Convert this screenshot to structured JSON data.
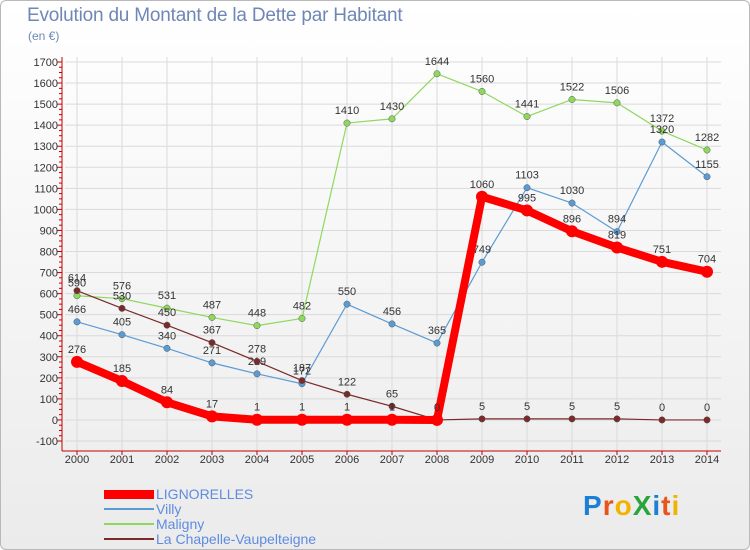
{
  "title": "Evolution du Montant de la Dette par Habitant",
  "subtitle": "(en €)",
  "logo": {
    "text": "ProXiti",
    "colors": [
      "#1b7fd6",
      "#e8541b",
      "#f0b400",
      "#2aa43c",
      "#1b7fd6",
      "#e8541b",
      "#f0b400"
    ]
  },
  "chart_data": {
    "type": "line",
    "title": "Evolution du Montant de la Dette par Habitant",
    "ylabel": "(en €)",
    "xlabel": "",
    "ylim": [
      -100,
      1700
    ],
    "yticks": [
      -100,
      0,
      100,
      200,
      300,
      400,
      500,
      600,
      700,
      800,
      900,
      1000,
      1100,
      1200,
      1300,
      1400,
      1500,
      1600,
      1700
    ],
    "categories": [
      "2000",
      "2001",
      "2002",
      "2003",
      "2004",
      "2005",
      "2006",
      "2007",
      "2008",
      "2009",
      "2010",
      "2011",
      "2012",
      "2013",
      "2014"
    ],
    "grid": true,
    "legend_position": "bottom-left",
    "series": [
      {
        "name": "LIGNORELLES",
        "color": "#ff0000",
        "values": [
          276,
          185,
          84,
          17,
          1,
          1,
          1,
          1,
          0,
          1060,
          995,
          896,
          819,
          751,
          704
        ]
      },
      {
        "name": "Villy",
        "color": "#5b9bd5",
        "values": [
          466,
          405,
          340,
          271,
          219,
          172,
          550,
          456,
          365,
          749,
          1103,
          1030,
          894,
          1320,
          1155
        ]
      },
      {
        "name": "Maligny",
        "color": "#8fd85e",
        "values": [
          590,
          576,
          531,
          487,
          448,
          482,
          1410,
          1430,
          1644,
          1560,
          1441,
          1522,
          1506,
          1372,
          1282
        ]
      },
      {
        "name": "La Chapelle-Vaupelteigne",
        "color": "#7a2a2a",
        "values": [
          614,
          530,
          450,
          367,
          278,
          187,
          122,
          65,
          0,
          5,
          5,
          5,
          5,
          0,
          0
        ]
      }
    ]
  }
}
